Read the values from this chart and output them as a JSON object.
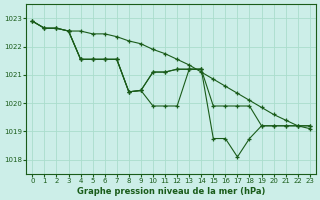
{
  "bg_color": "#cceee8",
  "line_color": "#1a5c1a",
  "grid_color": "#aaddcc",
  "xlabel": "Graphe pression niveau de la mer (hPa)",
  "ylim": [
    1017.5,
    1023.5
  ],
  "xlim": [
    -0.5,
    23.5
  ],
  "yticks": [
    1018,
    1019,
    1020,
    1021,
    1022,
    1023
  ],
  "xticks": [
    0,
    1,
    2,
    3,
    4,
    5,
    6,
    7,
    8,
    9,
    10,
    11,
    12,
    13,
    14,
    15,
    16,
    17,
    18,
    19,
    20,
    21,
    22,
    23
  ],
  "lines": [
    {
      "x": [
        0,
        1,
        2,
        3,
        4,
        5,
        6,
        7,
        8,
        9,
        10,
        11,
        12,
        13,
        14,
        15,
        16,
        17,
        18,
        19,
        20,
        21,
        22,
        23
      ],
      "y": [
        1022.9,
        1022.65,
        1022.65,
        1022.55,
        1022.55,
        1022.45,
        1022.45,
        1022.35,
        1022.2,
        1022.1,
        1021.9,
        1021.75,
        1021.55,
        1021.35,
        1021.1,
        1020.85,
        1020.6,
        1020.35,
        1020.1,
        1019.85,
        1019.6,
        1019.4,
        1019.2,
        1019.1
      ]
    },
    {
      "x": [
        0,
        1,
        2,
        3,
        4,
        5,
        6,
        7,
        8,
        9,
        10,
        11,
        12,
        13,
        14,
        15,
        16,
        17,
        18,
        19,
        20,
        21,
        22,
        23
      ],
      "y": [
        1022.9,
        1022.65,
        1022.65,
        1022.55,
        1021.55,
        1021.55,
        1021.55,
        1021.55,
        1020.4,
        1020.45,
        1021.1,
        1021.1,
        1021.2,
        1021.2,
        1021.2,
        1019.9,
        1019.9,
        1019.9,
        1019.9,
        1019.2,
        1019.2,
        1019.2,
        1019.2,
        1019.2
      ]
    },
    {
      "x": [
        0,
        1,
        2,
        3,
        4,
        5,
        6,
        7,
        8,
        9,
        10,
        11,
        12,
        13,
        14,
        15,
        16,
        17,
        18,
        19,
        20,
        21,
        22,
        23
      ],
      "y": [
        1022.9,
        1022.65,
        1022.65,
        1022.55,
        1021.55,
        1021.55,
        1021.55,
        1021.55,
        1020.4,
        1020.45,
        1019.9,
        1019.9,
        1019.9,
        1021.2,
        1021.2,
        1018.75,
        1018.75,
        1018.1,
        1018.75,
        1019.2,
        1019.2,
        1019.2,
        1019.2,
        1019.2
      ]
    },
    {
      "x": [
        3,
        4,
        5,
        6,
        7,
        8,
        9,
        10,
        11,
        12,
        13,
        14
      ],
      "y": [
        1022.55,
        1021.55,
        1021.55,
        1021.55,
        1021.55,
        1020.4,
        1020.45,
        1021.1,
        1021.1,
        1021.2,
        1021.2,
        1021.2
      ]
    }
  ]
}
